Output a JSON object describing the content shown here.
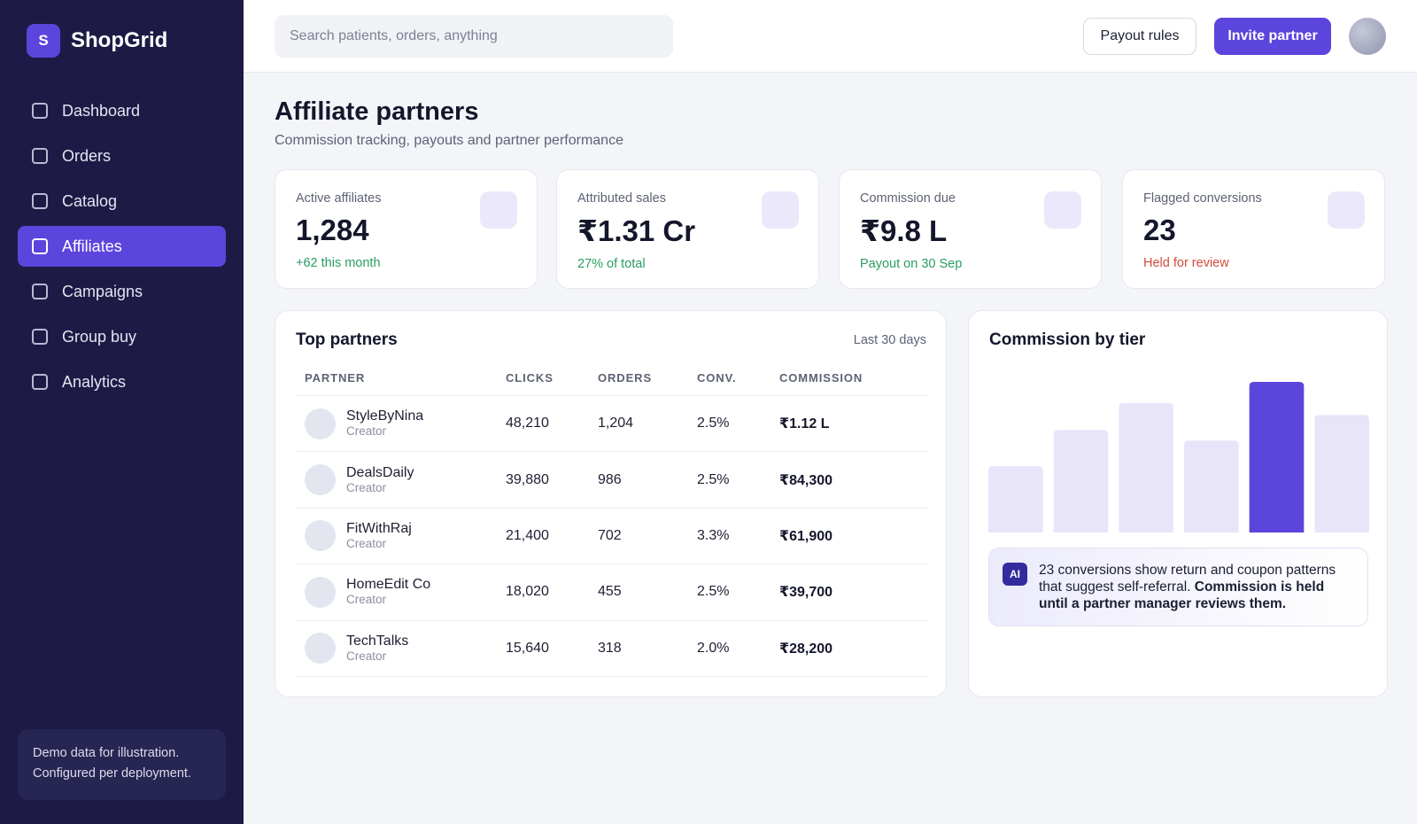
{
  "brand": {
    "logo_letter": "S",
    "name": "ShopGrid"
  },
  "sidebar": {
    "items": [
      {
        "label": "Dashboard",
        "active": false
      },
      {
        "label": "Orders",
        "active": false
      },
      {
        "label": "Catalog",
        "active": false
      },
      {
        "label": "Affiliates",
        "active": true
      },
      {
        "label": "Campaigns",
        "active": false
      },
      {
        "label": "Group buy",
        "active": false
      },
      {
        "label": "Analytics",
        "active": false
      }
    ],
    "footer_note_line1": "Demo data for illustration.",
    "footer_note_line2": "Configured per deployment."
  },
  "header": {
    "search_placeholder": "Search patients, orders, anything",
    "payout_rules_label": "Payout rules",
    "invite_partner_label": "Invite partner"
  },
  "page": {
    "title": "Affiliate partners",
    "subtitle": "Commission tracking, payouts and partner performance"
  },
  "kpis": [
    {
      "label": "Active affiliates",
      "value": "1,284",
      "note": "+62 this month",
      "note_tone": "green"
    },
    {
      "label": "Attributed sales",
      "value": "₹1.31 Cr",
      "note": "27% of total",
      "note_tone": "green"
    },
    {
      "label": "Commission due",
      "value": "₹9.8 L",
      "note": "Payout on 30 Sep",
      "note_tone": "green"
    },
    {
      "label": "Flagged conversions",
      "value": "23",
      "note": "Held for review",
      "note_tone": "red"
    }
  ],
  "top_partners": {
    "title": "Top partners",
    "period": "Last 30 days",
    "columns": {
      "partner": "PARTNER",
      "clicks": "CLICKS",
      "orders": "ORDERS",
      "conv": "CONV.",
      "commission": "COMMISSION"
    },
    "rows": [
      {
        "name": "StyleByNina",
        "role": "Creator",
        "clicks": "48,210",
        "orders": "1,204",
        "conv": "2.5%",
        "commission": "₹1.12 L"
      },
      {
        "name": "DealsDaily",
        "role": "Creator",
        "clicks": "39,880",
        "orders": "986",
        "conv": "2.5%",
        "commission": "₹84,300"
      },
      {
        "name": "FitWithRaj",
        "role": "Creator",
        "clicks": "21,400",
        "orders": "702",
        "conv": "3.3%",
        "commission": "₹61,900"
      },
      {
        "name": "HomeEdit Co",
        "role": "Creator",
        "clicks": "18,020",
        "orders": "455",
        "conv": "2.5%",
        "commission": "₹39,700"
      },
      {
        "name": "TechTalks",
        "role": "Creator",
        "clicks": "15,640",
        "orders": "318",
        "conv": "2.0%",
        "commission": "₹28,200"
      }
    ]
  },
  "commission_by_tier": {
    "title": "Commission by tier",
    "ai_badge": "AI",
    "ai_text_plain": "23 conversions show return and coupon patterns that suggest self-referral. ",
    "ai_text_bold": "Commission is held until a partner manager reviews them."
  },
  "chart_data": {
    "type": "bar",
    "title": "Commission by tier",
    "values": [
      0.44,
      0.68,
      0.86,
      0.61,
      1.0,
      0.78
    ],
    "highlight_index": 4,
    "ylim": [
      0,
      1
    ],
    "grid": false,
    "colors": {
      "bar": "#e8e5fa",
      "highlight": "#5b45dc"
    }
  }
}
